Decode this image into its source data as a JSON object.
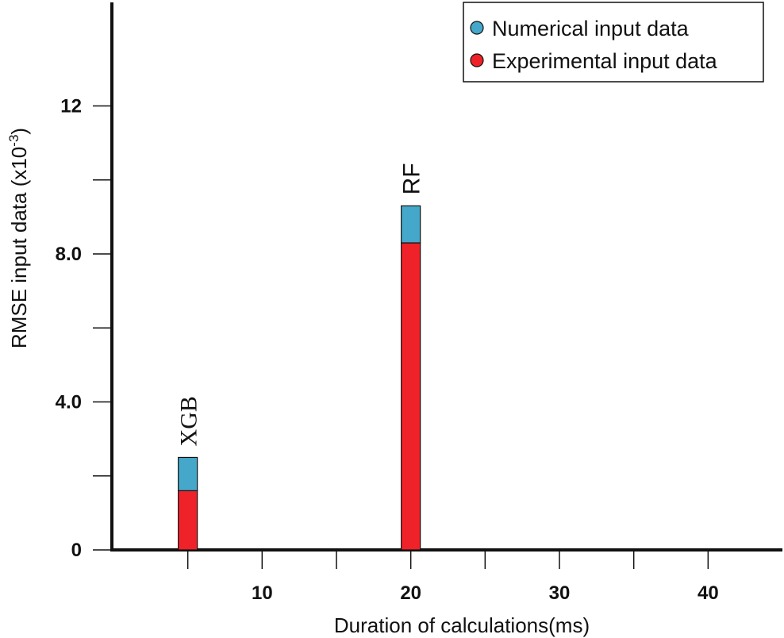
{
  "chart_data": {
    "type": "bar",
    "stacked": true,
    "title": "",
    "xlabel": "Duration of calculations(ms)",
    "ylabel": "RMSE input data (x10",
    "ylabel_superscript": "-3",
    "ylabel_suffix": ")",
    "xlim": [
      0,
      45
    ],
    "ylim": [
      0,
      14.8
    ],
    "x_ticks": [
      5,
      10,
      15,
      20,
      25,
      30,
      35,
      40
    ],
    "x_tick_labels": [
      {
        "value": 10,
        "label": "10"
      },
      {
        "value": 20,
        "label": "20"
      },
      {
        "value": 30,
        "label": "30"
      },
      {
        "value": 40,
        "label": "40"
      }
    ],
    "y_ticks": [
      0,
      2,
      4,
      6,
      8,
      10,
      12
    ],
    "y_tick_labels": [
      {
        "value": 0,
        "label": "0"
      },
      {
        "value": 4,
        "label": "4.0"
      },
      {
        "value": 8,
        "label": "8.0"
      },
      {
        "value": 12,
        "label": "12"
      }
    ],
    "grid": false,
    "legend_position": "top-right",
    "categories": [
      "XGB",
      "RF"
    ],
    "x": [
      5,
      20
    ],
    "series": [
      {
        "name": "Experimental input data",
        "color": "#ee2228",
        "values": [
          1.6,
          8.3
        ]
      },
      {
        "name": "Numerical input data",
        "color": "#45a7c9",
        "values": [
          0.9,
          1.0
        ]
      }
    ],
    "legend_order": [
      1,
      0
    ]
  }
}
